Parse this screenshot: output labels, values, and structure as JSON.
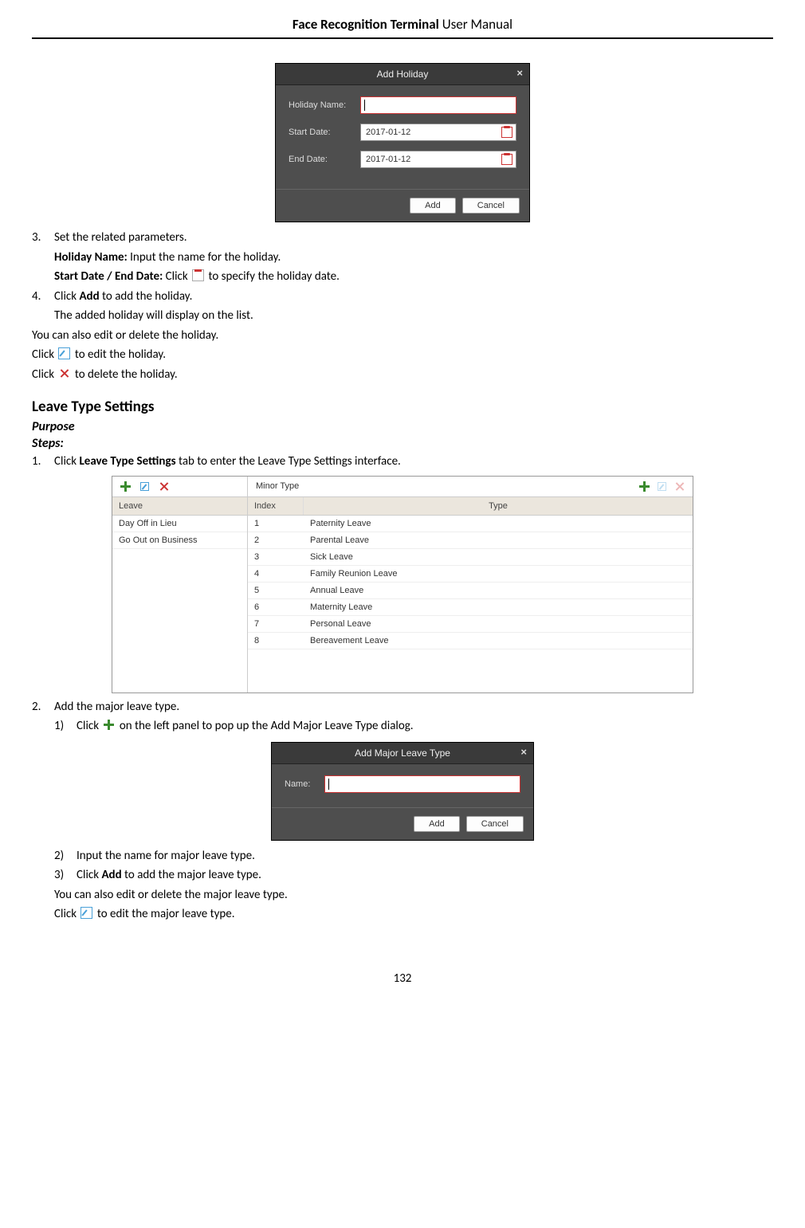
{
  "header": {
    "title_bold": "Face Recognition Terminal",
    "title_rest": "  User Manual"
  },
  "page_number": "132",
  "holiday_dialog": {
    "title": "Add Holiday",
    "fields": {
      "name_label": "Holiday Name:",
      "name_value": "",
      "start_label": "Start Date:",
      "start_value": "2017-01-12",
      "end_label": "End Date:",
      "end_value": "2017-01-12"
    },
    "buttons": {
      "add": "Add",
      "cancel": "Cancel"
    }
  },
  "step3": {
    "num": "3.",
    "text": "Set the related parameters.",
    "holiday_name_label": "Holiday Name: ",
    "holiday_name_text": "Input the name for the holiday.",
    "startend_label": "Start Date / End Date: ",
    "startend_pre": "Click ",
    "startend_post": " to specify the holiday date."
  },
  "step4": {
    "num": "4.",
    "line1_pre": "Click ",
    "line1_bold": "Add",
    "line1_post": " to add the holiday.",
    "line2": "The added holiday will display on the list."
  },
  "holiday_notes": {
    "n1": "You can also edit or delete the holiday.",
    "n2_pre": "Click ",
    "n2_post": " to edit the holiday.",
    "n3_pre": "Click ",
    "n3_post": " to delete the holiday."
  },
  "leave_section": {
    "heading": "Leave Type Settings",
    "purpose": "Purpose",
    "steps": "Steps:"
  },
  "leave_step1": {
    "num": "1.",
    "pre": "Click ",
    "bold": "Leave Type Settings",
    "post": " tab to enter the Leave Type Settings interface."
  },
  "leave_table": {
    "left": {
      "header": "",
      "rows": [
        "Leave",
        "Day Off in Lieu",
        "Go Out on Business"
      ]
    },
    "right": {
      "title": "Minor Type",
      "col1": "Index",
      "col2": "Type",
      "rows": [
        {
          "idx": "1",
          "type": "Paternity Leave"
        },
        {
          "idx": "2",
          "type": "Parental Leave"
        },
        {
          "idx": "3",
          "type": "Sick Leave"
        },
        {
          "idx": "4",
          "type": "Family Reunion Leave"
        },
        {
          "idx": "5",
          "type": "Annual Leave"
        },
        {
          "idx": "6",
          "type": "Maternity Leave"
        },
        {
          "idx": "7",
          "type": "Personal Leave"
        },
        {
          "idx": "8",
          "type": "Bereavement Leave"
        }
      ]
    }
  },
  "leave_step2": {
    "num": "2.",
    "text": "Add the major leave type.",
    "s1_num": "1)",
    "s1_pre": "Click ",
    "s1_post": " on the left panel to pop up the Add Major Leave Type dialog.",
    "s2_num": "2)",
    "s2_text": "Input the name for major leave type.",
    "s3_num": "3)",
    "s3_pre": "Click ",
    "s3_bold": "Add",
    "s3_post": " to add the major leave type.",
    "note1": "You can also edit or delete the major leave type.",
    "note2_pre": "Click ",
    "note2_post": " to edit the major leave type."
  },
  "major_dialog": {
    "title": "Add Major Leave Type",
    "name_label": "Name:",
    "buttons": {
      "add": "Add",
      "cancel": "Cancel"
    }
  },
  "colors": {
    "dlg_bg": "#4e4e4e",
    "dlg_title_bg": "#3a3a3a",
    "accent_red": "#c33333",
    "accent_green": "#3a8a2e",
    "accent_blue": "#49a0d8",
    "table_head_bg": "#ebe6dd"
  }
}
